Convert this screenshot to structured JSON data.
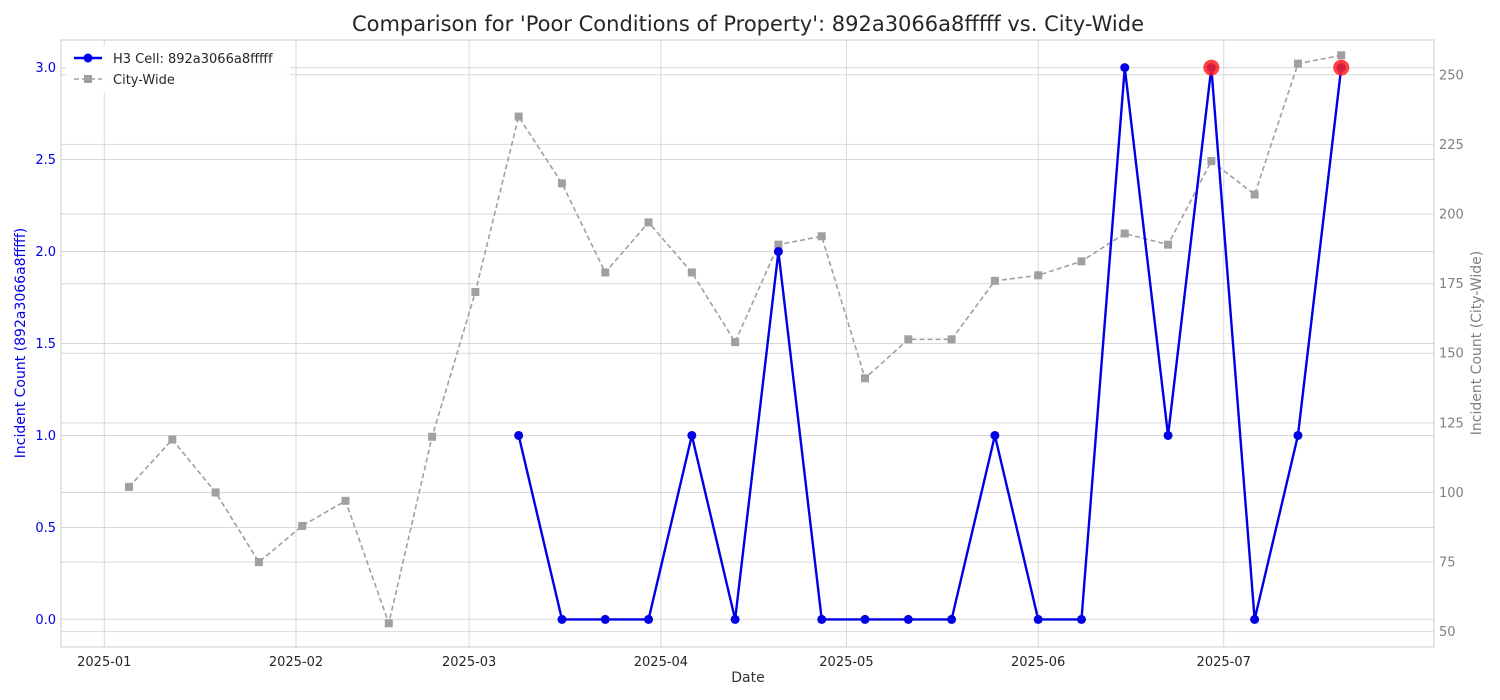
{
  "chart_data": {
    "type": "line",
    "title": "Comparison for 'Poor Conditions of Property': 892a3066a8fffff vs. City-Wide",
    "xlabel": "Date",
    "ylabel_left": "Incident Count (892a3066a8fffff)",
    "ylabel_right": "Incident Count (City-Wide)",
    "x_ticks": [
      "2025-01",
      "2025-02",
      "2025-03",
      "2025-04",
      "2025-05",
      "2025-06",
      "2025-07"
    ],
    "x_tick_dates": [
      "2025-01-01",
      "2025-02-01",
      "2025-03-01",
      "2025-04-01",
      "2025-05-01",
      "2025-06-01",
      "2025-07-01"
    ],
    "xlim": [
      "2024-12-25",
      "2025-08-04"
    ],
    "y_left_ticks": [
      "0.0",
      "0.5",
      "1.0",
      "1.5",
      "2.0",
      "2.5",
      "3.0"
    ],
    "y_left_tick_values": [
      0,
      0.5,
      1.0,
      1.5,
      2.0,
      2.5,
      3.0
    ],
    "ylim_left": [
      -0.15,
      3.15
    ],
    "y_right_ticks": [
      "50",
      "75",
      "100",
      "125",
      "150",
      "175",
      "200",
      "225",
      "250"
    ],
    "y_right_tick_values": [
      50,
      75,
      100,
      125,
      150,
      175,
      200,
      225,
      250
    ],
    "ylim_right": [
      44.5,
      262.5
    ],
    "grid": true,
    "legend_position": "top-left",
    "series": [
      {
        "name": "H3 Cell: 892a3066a8fffff",
        "axis": "left",
        "color": "#0000e6",
        "style": "solid",
        "marker": "circle",
        "x": [
          "2025-03-09",
          "2025-03-16",
          "2025-03-23",
          "2025-03-30",
          "2025-04-06",
          "2025-04-13",
          "2025-04-20",
          "2025-04-27",
          "2025-05-04",
          "2025-05-11",
          "2025-05-18",
          "2025-05-25",
          "2025-06-01",
          "2025-06-08",
          "2025-06-15",
          "2025-06-22",
          "2025-06-29",
          "2025-07-06",
          "2025-07-13",
          "2025-07-20"
        ],
        "y": [
          1,
          0,
          0,
          0,
          1,
          0,
          2,
          0,
          0,
          0,
          0,
          1,
          0,
          0,
          3,
          1,
          3,
          0,
          1,
          3
        ]
      },
      {
        "name": "City-Wide",
        "axis": "right",
        "color": "#a0a0a0",
        "style": "dashed",
        "marker": "square",
        "x": [
          "2025-01-05",
          "2025-01-12",
          "2025-01-19",
          "2025-01-26",
          "2025-02-02",
          "2025-02-09",
          "2025-02-16",
          "2025-02-23",
          "2025-03-02",
          "2025-03-09",
          "2025-03-16",
          "2025-03-23",
          "2025-03-30",
          "2025-04-06",
          "2025-04-13",
          "2025-04-20",
          "2025-04-27",
          "2025-05-04",
          "2025-05-11",
          "2025-05-18",
          "2025-05-25",
          "2025-06-01",
          "2025-06-08",
          "2025-06-15",
          "2025-06-22",
          "2025-06-29",
          "2025-07-06",
          "2025-07-13",
          "2025-07-20"
        ],
        "y": [
          102,
          119,
          100,
          75,
          88,
          97,
          53,
          120,
          172,
          235,
          211,
          179,
          197,
          179,
          154,
          189,
          192,
          141,
          155,
          155,
          176,
          178,
          183,
          193,
          189,
          219,
          207,
          254,
          257
        ]
      }
    ],
    "highlights": [
      {
        "x": "2025-06-29",
        "y": 3,
        "axis": "left",
        "color": "#ff2020"
      },
      {
        "x": "2025-07-20",
        "y": 3,
        "axis": "left",
        "color": "#ff2020"
      }
    ]
  }
}
